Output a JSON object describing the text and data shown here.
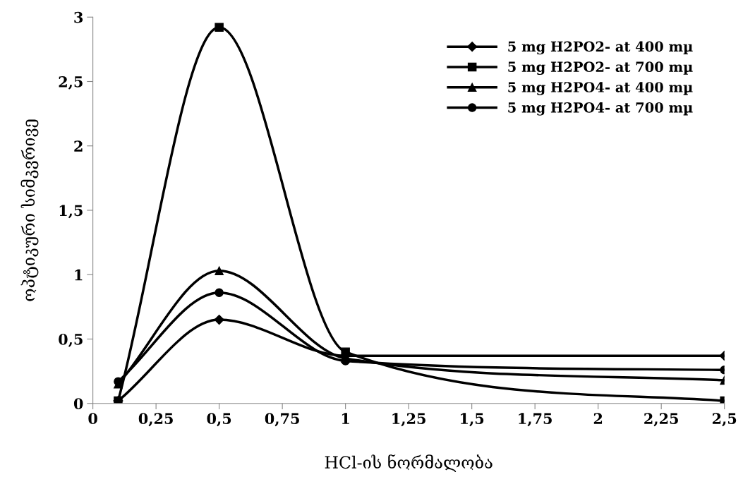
{
  "chart_data": {
    "type": "line",
    "xlabel": "HCl-ის ნორმალობა",
    "ylabel": "ოპტიკური სიმკვრივე",
    "xlim": [
      0,
      2.5
    ],
    "ylim": [
      0,
      3
    ],
    "xticks": [
      0,
      {
        "value": 0.25,
        "label": "0,25"
      },
      {
        "value": 0.5,
        "label": "0,5"
      },
      {
        "value": 0.75,
        "label": "0,75"
      },
      1,
      {
        "value": 1.25,
        "label": "1,25"
      },
      {
        "value": 1.5,
        "label": "1,5"
      },
      {
        "value": 1.75,
        "label": "1,75"
      },
      2,
      {
        "value": 2.25,
        "label": "2,25"
      },
      {
        "value": 2.5,
        "label": "2,5"
      }
    ],
    "yticks": [
      0,
      {
        "value": 0.5,
        "label": "0,5"
      },
      1,
      {
        "value": 1.5,
        "label": "1,5"
      },
      2,
      {
        "value": 2.5,
        "label": "2,5"
      },
      3
    ],
    "x": [
      0.1,
      0.5,
      1,
      2.5
    ],
    "grid": false,
    "legend": "top right",
    "line_style": "solid",
    "series": [
      {
        "name": "5 mg H2PO2- at 400 mµ",
        "color": "#000000",
        "marker": "diamond",
        "values": [
          0.02,
          0.65,
          0.37,
          0.37
        ]
      },
      {
        "name": "5 mg H2PO2- at 700 mµ",
        "color": "#000000",
        "marker": "square",
        "values": [
          0.02,
          2.92,
          0.4,
          0.02
        ]
      },
      {
        "name": "5 mg H2PO4- at 400 mµ",
        "color": "#000000",
        "marker": "triangle",
        "values": [
          0.15,
          1.03,
          0.35,
          0.18
        ]
      },
      {
        "name": "5 mg H2PO4- at 700 mµ",
        "color": "#000000",
        "marker": "circle",
        "values": [
          0.17,
          0.86,
          0.33,
          0.26
        ]
      }
    ]
  }
}
